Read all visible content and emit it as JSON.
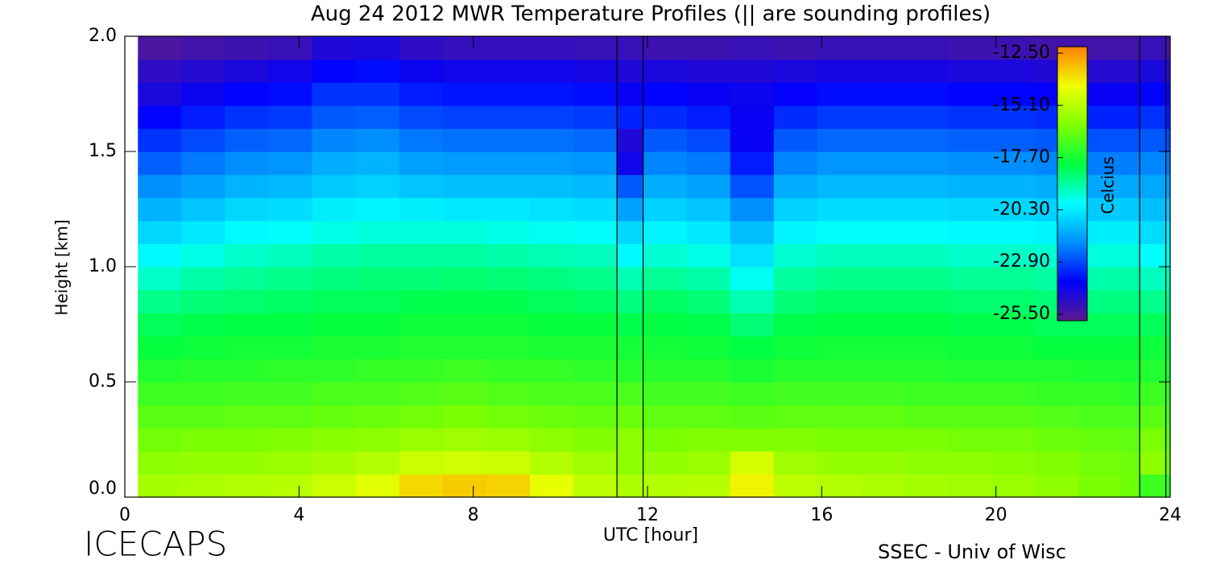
{
  "chart_data": {
    "type": "heatmap",
    "title": "Aug 24 2012 MWR Temperature Profiles (|| are sounding profiles)",
    "x_label": "UTC [hour]",
    "y_label": "Height [km]",
    "colorbar_label": "Celcius",
    "footer_left": "ICECAPS",
    "footer_right": "SSEC - Univ of Wisc",
    "xlim": [
      0,
      24
    ],
    "xticks": [
      0,
      4,
      8,
      12,
      16,
      20,
      24
    ],
    "ylim": [
      0,
      2
    ],
    "yticks": [
      {
        "value": 0,
        "label": "0.0"
      },
      0.5,
      {
        "value": 1,
        "label": "1.0"
      },
      1.5,
      {
        "value": 2,
        "label": "2.0"
      }
    ],
    "zlim": [
      -25.5,
      -12.5
    ],
    "zticks": [
      {
        "value": -25.5,
        "label": "-25.50"
      },
      {
        "value": -22.9,
        "label": "-22.90"
      },
      {
        "value": -20.3,
        "label": "-20.30"
      },
      {
        "value": -17.7,
        "label": "-17.70"
      },
      {
        "value": -15.1,
        "label": "-15.10"
      },
      {
        "value": -12.5,
        "label": "-12.50"
      }
    ],
    "colorscale": [
      "#5a1a8c",
      "#0000ff",
      "#0090ff",
      "#00ffff",
      "#00ff40",
      "#80ff00",
      "#f0ff00",
      "#ff8000"
    ],
    "soundings": [
      {
        "start": 11.3,
        "end": 11.9
      },
      {
        "start": 23.3,
        "end": 23.9
      }
    ],
    "xbins": [
      0.3,
      1.3,
      2.3,
      3.3,
      4.3,
      5.3,
      6.3,
      7.3,
      8.3,
      9.3,
      10.3,
      11.3,
      11.9,
      12.9,
      13.9,
      14.9,
      15.9,
      16.9,
      17.9,
      18.9,
      19.9,
      20.9,
      21.9,
      22.9,
      23.3,
      23.9,
      24
    ],
    "ybins": [
      0,
      0.1,
      0.2,
      0.3,
      0.4,
      0.5,
      0.6,
      0.7,
      0.8,
      0.9,
      1,
      1.1,
      1.2,
      1.3,
      1.4,
      1.5,
      1.6,
      1.7,
      1.8,
      1.9,
      2
    ],
    "z": [
      [
        -15.6,
        -15.5,
        -15.4,
        -15.3,
        -15.0,
        -14.6,
        -13.8,
        -13.6,
        -13.7,
        -14.5,
        -15.2,
        -15.5,
        -15.4,
        -15.3,
        -14.2,
        -15.2,
        -15.4,
        -15.5,
        -15.6,
        -15.7,
        -15.8,
        -16.0,
        -16.3,
        -16.5,
        -17.2,
        -17.5
      ],
      [
        -16.0,
        -15.9,
        -15.9,
        -15.8,
        -15.6,
        -15.4,
        -15.0,
        -14.9,
        -15.0,
        -15.4,
        -15.7,
        -16.0,
        -15.9,
        -15.8,
        -14.8,
        -15.7,
        -15.9,
        -15.9,
        -16.0,
        -16.0,
        -16.1,
        -16.2,
        -16.4,
        -16.5,
        -16.0,
        -16.6
      ],
      [
        -16.4,
        -16.3,
        -16.3,
        -16.2,
        -16.1,
        -16.0,
        -15.8,
        -15.7,
        -15.8,
        -16.0,
        -16.2,
        -16.0,
        -16.3,
        -16.2,
        -16.2,
        -16.2,
        -16.3,
        -16.3,
        -16.3,
        -16.4,
        -16.4,
        -16.5,
        -16.6,
        -16.7,
        -16.3,
        -16.8
      ],
      [
        -16.8,
        -16.8,
        -16.7,
        -16.7,
        -16.6,
        -16.5,
        -16.4,
        -16.3,
        -16.4,
        -16.5,
        -16.6,
        -16.5,
        -16.7,
        -16.7,
        -16.8,
        -16.7,
        -16.7,
        -16.7,
        -16.8,
        -16.8,
        -16.8,
        -16.9,
        -17.0,
        -17.0,
        -16.8,
        -17.1
      ],
      [
        -17.2,
        -17.2,
        -17.1,
        -17.1,
        -17.0,
        -17.0,
        -16.9,
        -16.8,
        -16.9,
        -17.0,
        -17.0,
        -17.0,
        -17.1,
        -17.1,
        -17.2,
        -17.1,
        -17.1,
        -17.1,
        -17.2,
        -17.2,
        -17.2,
        -17.3,
        -17.3,
        -17.4,
        -17.2,
        -17.4
      ],
      [
        -17.6,
        -17.5,
        -17.5,
        -17.4,
        -17.4,
        -17.3,
        -17.3,
        -17.2,
        -17.3,
        -17.3,
        -17.4,
        -17.5,
        -17.5,
        -17.5,
        -17.7,
        -17.5,
        -17.5,
        -17.5,
        -17.5,
        -17.6,
        -17.6,
        -17.6,
        -17.7,
        -17.7,
        -17.6,
        -17.8
      ],
      [
        -18.0,
        -17.9,
        -17.8,
        -17.8,
        -17.7,
        -17.7,
        -17.6,
        -17.6,
        -17.6,
        -17.7,
        -17.7,
        -17.8,
        -17.8,
        -17.9,
        -18.1,
        -17.9,
        -17.8,
        -17.8,
        -17.8,
        -17.9,
        -17.9,
        -18.0,
        -18.0,
        -18.0,
        -17.9,
        -18.1
      ],
      [
        -18.3,
        -18.2,
        -18.1,
        -18.1,
        -18.0,
        -18.0,
        -17.9,
        -17.9,
        -17.9,
        -18.0,
        -18.0,
        -18.2,
        -18.1,
        -18.2,
        -18.6,
        -18.2,
        -18.1,
        -18.1,
        -18.1,
        -18.2,
        -18.2,
        -18.3,
        -18.3,
        -18.3,
        -18.3,
        -18.4
      ],
      [
        -18.8,
        -18.6,
        -18.5,
        -18.4,
        -18.3,
        -18.3,
        -18.2,
        -18.2,
        -18.2,
        -18.3,
        -18.4,
        -18.7,
        -18.4,
        -18.6,
        -19.2,
        -18.6,
        -18.4,
        -18.4,
        -18.4,
        -18.5,
        -18.5,
        -18.6,
        -18.7,
        -18.7,
        -18.8,
        -18.8
      ],
      [
        -19.4,
        -19.1,
        -18.9,
        -18.8,
        -18.7,
        -18.6,
        -18.6,
        -18.5,
        -18.6,
        -18.7,
        -18.8,
        -19.2,
        -18.9,
        -19.1,
        -19.8,
        -19.0,
        -18.8,
        -18.8,
        -18.8,
        -18.9,
        -18.9,
        -19.0,
        -19.1,
        -19.1,
        -19.3,
        -19.2
      ],
      [
        -20.0,
        -19.7,
        -19.4,
        -19.3,
        -19.1,
        -19.0,
        -19.0,
        -19.0,
        -19.1,
        -19.2,
        -19.3,
        -20.0,
        -19.5,
        -19.7,
        -20.4,
        -19.5,
        -19.3,
        -19.3,
        -19.3,
        -19.4,
        -19.4,
        -19.5,
        -19.6,
        -19.6,
        -19.9,
        -19.7
      ],
      [
        -20.6,
        -20.3,
        -20.0,
        -19.9,
        -19.7,
        -19.6,
        -19.6,
        -19.6,
        -19.7,
        -19.8,
        -19.9,
        -20.6,
        -20.1,
        -20.3,
        -21.0,
        -20.1,
        -19.9,
        -19.9,
        -19.9,
        -20.0,
        -20.0,
        -20.1,
        -20.2,
        -20.2,
        -20.5,
        -20.3
      ],
      [
        -21.2,
        -20.9,
        -20.6,
        -20.5,
        -20.2,
        -20.1,
        -20.2,
        -20.3,
        -20.3,
        -20.4,
        -20.5,
        -21.5,
        -20.7,
        -20.9,
        -21.8,
        -20.7,
        -20.5,
        -20.5,
        -20.5,
        -20.6,
        -20.6,
        -20.7,
        -20.8,
        -20.8,
        -21.0,
        -20.9
      ],
      [
        -21.8,
        -21.5,
        -21.2,
        -21.1,
        -20.8,
        -20.7,
        -20.9,
        -21.0,
        -21.0,
        -21.0,
        -21.1,
        -22.5,
        -21.3,
        -21.5,
        -22.6,
        -21.3,
        -21.1,
        -21.1,
        -21.1,
        -21.2,
        -21.2,
        -21.3,
        -21.4,
        -21.4,
        -21.4,
        -21.5
      ],
      [
        -22.4,
        -22.1,
        -21.8,
        -21.7,
        -21.3,
        -21.2,
        -21.5,
        -21.6,
        -21.6,
        -21.6,
        -21.7,
        -24.0,
        -21.9,
        -22.1,
        -23.3,
        -21.9,
        -21.7,
        -21.7,
        -21.7,
        -21.8,
        -21.8,
        -21.9,
        -22.0,
        -22.0,
        -21.9,
        -22.1
      ],
      [
        -23.0,
        -22.7,
        -22.4,
        -22.3,
        -21.9,
        -21.8,
        -22.1,
        -22.2,
        -22.2,
        -22.2,
        -22.3,
        -24.3,
        -22.5,
        -22.7,
        -23.8,
        -22.5,
        -22.3,
        -22.3,
        -22.3,
        -22.4,
        -22.4,
        -22.5,
        -22.6,
        -22.6,
        -22.5,
        -22.7
      ],
      [
        -23.6,
        -23.3,
        -23.0,
        -22.9,
        -22.5,
        -22.4,
        -22.7,
        -22.8,
        -22.8,
        -22.8,
        -22.9,
        -23.2,
        -23.1,
        -23.3,
        -23.8,
        -23.1,
        -22.9,
        -22.9,
        -22.9,
        -23.0,
        -23.0,
        -23.1,
        -23.2,
        -23.2,
        -23.0,
        -23.3
      ],
      [
        -24.2,
        -23.9,
        -23.6,
        -23.5,
        -23.0,
        -23.0,
        -23.3,
        -23.4,
        -23.4,
        -23.4,
        -23.5,
        -23.8,
        -23.6,
        -23.8,
        -23.9,
        -23.7,
        -23.5,
        -23.5,
        -23.5,
        -23.6,
        -23.6,
        -23.7,
        -23.8,
        -23.8,
        -23.6,
        -23.9
      ],
      [
        -24.6,
        -24.4,
        -24.2,
        -24.0,
        -23.6,
        -23.5,
        -23.9,
        -24.0,
        -24.0,
        -24.0,
        -24.1,
        -24.3,
        -24.2,
        -24.3,
        -24.3,
        -24.2,
        -24.1,
        -24.1,
        -24.1,
        -24.2,
        -24.2,
        -24.3,
        -24.4,
        -24.4,
        -24.2,
        -24.5
      ],
      [
        -25.2,
        -25.0,
        -24.9,
        -24.8,
        -24.3,
        -24.2,
        -24.6,
        -24.7,
        -24.7,
        -24.7,
        -24.8,
        -24.8,
        -24.9,
        -24.9,
        -24.8,
        -24.9,
        -24.8,
        -24.8,
        -24.8,
        -24.9,
        -24.9,
        -25.0,
        -25.0,
        -25.0,
        -24.8,
        -25.1
      ]
    ]
  }
}
